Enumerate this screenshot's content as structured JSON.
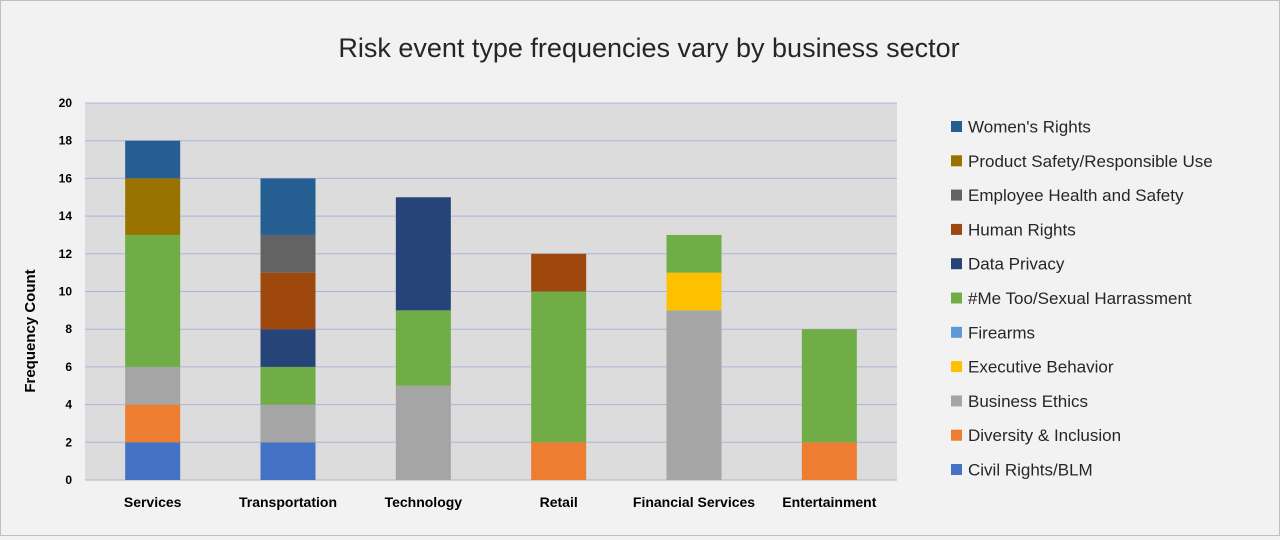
{
  "chart_data": {
    "type": "bar",
    "stacked": true,
    "title": "Risk event type frequencies vary by business sector",
    "xlabel": "",
    "ylabel": "Frequency Count",
    "ylim": [
      0,
      20
    ],
    "yticks": [
      0,
      2,
      4,
      6,
      8,
      10,
      12,
      14,
      16,
      18,
      20
    ],
    "grid": true,
    "legend_position": "right",
    "categories": [
      "Services",
      "Transportation",
      "Technology",
      "Retail",
      "Financial Services",
      "Entertainment"
    ],
    "series": [
      {
        "name": "Civil Rights/BLM",
        "color": "#4472c4",
        "values": [
          2,
          2,
          0,
          0,
          0,
          0
        ]
      },
      {
        "name": "Diversity & Inclusion",
        "color": "#ed7d31",
        "values": [
          2,
          0,
          0,
          2,
          0,
          2
        ]
      },
      {
        "name": "Business Ethics",
        "color": "#a5a5a5",
        "values": [
          2,
          2,
          5,
          0,
          9,
          0
        ]
      },
      {
        "name": "Executive Behavior",
        "color": "#ffc000",
        "values": [
          0,
          0,
          0,
          0,
          2,
          0
        ]
      },
      {
        "name": "Firearms",
        "color": "#5b9bd5",
        "values": [
          0,
          0,
          0,
          0,
          0,
          0
        ]
      },
      {
        "name": "#Me Too/Sexual Harrassment",
        "color": "#70ad47",
        "values": [
          7,
          2,
          4,
          8,
          2,
          6
        ]
      },
      {
        "name": "Data Privacy",
        "color": "#264478",
        "values": [
          0,
          2,
          6,
          0,
          0,
          0
        ]
      },
      {
        "name": "Human Rights",
        "color": "#9e480e",
        "values": [
          0,
          3,
          0,
          2,
          0,
          0
        ]
      },
      {
        "name": "Employee Health and Safety",
        "color": "#636363",
        "values": [
          0,
          2,
          0,
          0,
          0,
          0
        ]
      },
      {
        "name": "Product Safety/Responsible Use",
        "color": "#997300",
        "values": [
          3,
          0,
          0,
          0,
          0,
          0
        ]
      },
      {
        "name": "Women's Rights",
        "color": "#255e91",
        "values": [
          2,
          3,
          0,
          0,
          0,
          0
        ]
      }
    ]
  }
}
